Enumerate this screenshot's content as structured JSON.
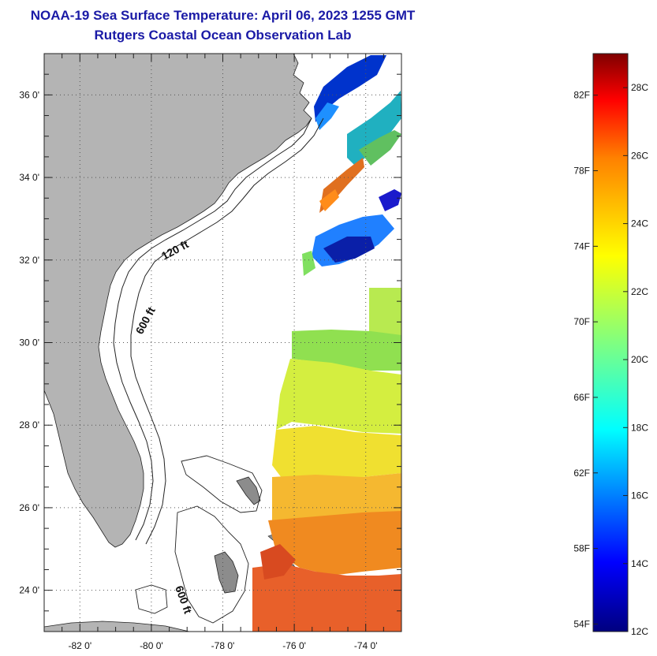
{
  "title": {
    "line1": "NOAA-19 Sea Surface Temperature:  April 06, 2023 1255 GMT",
    "line2": "Rutgers Coastal Ocean Observation Lab"
  },
  "map": {
    "lon_range": [
      -83,
      -73
    ],
    "lat_range": [
      23,
      37
    ],
    "lat_ticks": [
      {
        "value": 36,
        "label": "36 0'"
      },
      {
        "value": 34,
        "label": "34 0'"
      },
      {
        "value": 32,
        "label": "32 0'"
      },
      {
        "value": 30,
        "label": "30 0'"
      },
      {
        "value": 28,
        "label": "28 0'"
      },
      {
        "value": 26,
        "label": "26 0'"
      },
      {
        "value": 24,
        "label": "24 0'"
      }
    ],
    "lon_ticks": [
      {
        "value": -82,
        "label": "-82 0'"
      },
      {
        "value": -80,
        "label": "-80 0'"
      },
      {
        "value": -78,
        "label": "-78 0'"
      },
      {
        "value": -76,
        "label": "-76 0'"
      },
      {
        "value": -74,
        "label": "-74 0'"
      }
    ],
    "contour_labels": [
      {
        "text": "120 ft"
      },
      {
        "text": "600 ft"
      },
      {
        "text": "600 ft"
      }
    ],
    "colors": {
      "land": "#b4b4b4",
      "grid": "#555555"
    }
  },
  "colorbar": {
    "range_c": [
      12,
      29
    ],
    "fahrenheit_labels": [
      "82F",
      "78F",
      "74F",
      "70F",
      "66F",
      "62F",
      "58F",
      "54F"
    ],
    "celsius_labels": [
      "28C",
      "26C",
      "24C",
      "22C",
      "20C",
      "18C",
      "16C",
      "14C",
      "12C"
    ],
    "colors": [
      "#7f0000",
      "#ff0000",
      "#ff8000",
      "#ffff00",
      "#80ff80",
      "#00ffff",
      "#0080ff",
      "#0000ff",
      "#00007f"
    ]
  }
}
